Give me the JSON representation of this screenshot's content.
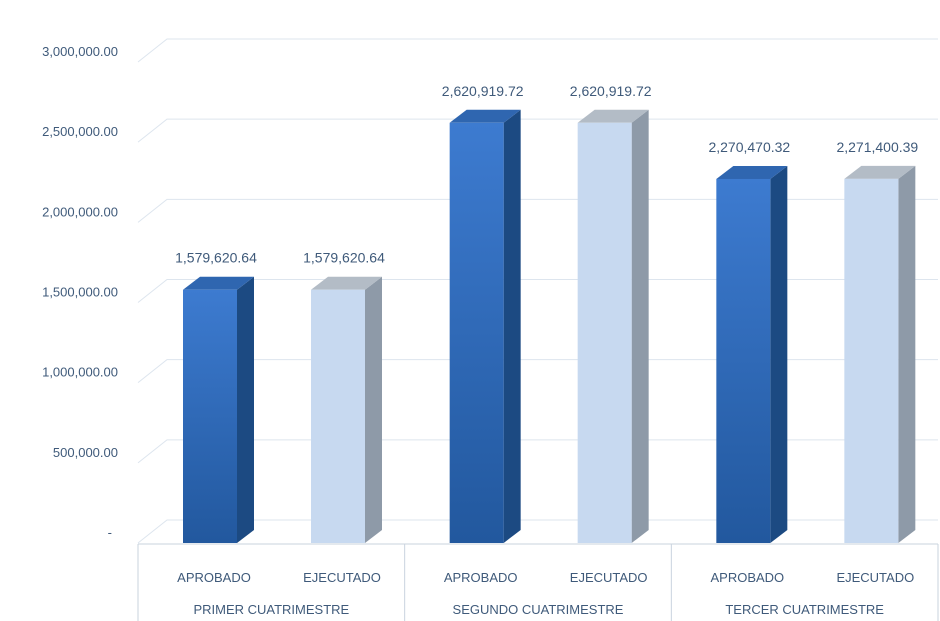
{
  "chart_data": {
    "type": "bar",
    "title": "",
    "xlabel": "",
    "ylabel": "",
    "ylim": [
      0,
      3000000
    ],
    "y_ticks": [
      {
        "value": 0,
        "label": "-"
      },
      {
        "value": 500000,
        "label": "500,000.00"
      },
      {
        "value": 1000000,
        "label": "1,000,000.00"
      },
      {
        "value": 1500000,
        "label": "1,500,000.00"
      },
      {
        "value": 2000000,
        "label": "2,000,000.00"
      },
      {
        "value": 2500000,
        "label": "2,500,000.00"
      },
      {
        "value": 3000000,
        "label": "3,000,000.00"
      }
    ],
    "grid": true,
    "legend": "none",
    "groups": [
      {
        "name": "PRIMER CUATRIMESTRE",
        "bars": [
          {
            "category": "APROBADO",
            "value": 1579620.64,
            "label": "1,579,620.64",
            "kind": "aprobado"
          },
          {
            "category": "EJECUTADO",
            "value": 1579620.64,
            "label": "1,579,620.64",
            "kind": "ejecutado"
          }
        ]
      },
      {
        "name": "SEGUNDO CUATRIMESTRE",
        "bars": [
          {
            "category": "APROBADO",
            "value": 2620919.72,
            "label": "2,620,919.72",
            "kind": "aprobado"
          },
          {
            "category": "EJECUTADO",
            "value": 2620919.72,
            "label": "2,620,919.72",
            "kind": "ejecutado"
          }
        ]
      },
      {
        "name": "TERCER CUATRIMESTRE",
        "bars": [
          {
            "category": "APROBADO",
            "value": 2270470.32,
            "label": "2,270,470.32",
            "kind": "aprobado"
          },
          {
            "category": "EJECUTADO",
            "value": 2271400.39,
            "label": "2,271,400.39",
            "kind": "ejecutado"
          }
        ]
      }
    ],
    "colors": {
      "aprobado_front_top": "#3d7bd0",
      "aprobado_front_bottom": "#22589e",
      "aprobado_side": "#1c4a82",
      "aprobado_top": "#2f66b0",
      "ejecutado_front": "#c7d9f0",
      "ejecutado_side": "#8e9aa8",
      "ejecutado_top": "#b3bcc6",
      "grid": "#dde5ee",
      "text": "#3f5a7a"
    }
  }
}
